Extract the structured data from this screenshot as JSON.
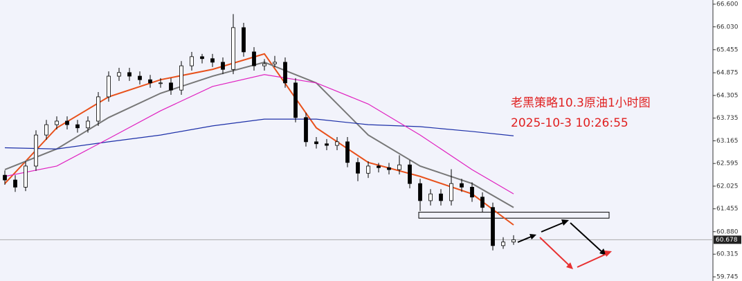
{
  "chart_data": {
    "type": "candlestick",
    "annotations": [
      "老黑策略10.3原油1小时图",
      "2025-10-3 10:26:55"
    ],
    "open": [
      62.3,
      62.18,
      62.0,
      62.53,
      63.31,
      63.57,
      63.66,
      63.57,
      63.49,
      63.66,
      64.27,
      64.79,
      64.88,
      64.79,
      64.7,
      64.62,
      64.62,
      64.44,
      65.05,
      65.28,
      65.23,
      65.14,
      64.96,
      66.01,
      65.4,
      65.05,
      65.1,
      65.14,
      64.62,
      63.75,
      63.14,
      63.09,
      63.05,
      63.14,
      62.62,
      62.35,
      62.53,
      62.49,
      62.44,
      62.56,
      62.09,
      61.66,
      61.83,
      61.66,
      62.09,
      62.0,
      61.75,
      61.49,
      60.53,
      60.62
    ],
    "high": [
      62.42,
      62.3,
      62.65,
      63.43,
      63.69,
      63.78,
      63.78,
      63.69,
      63.78,
      64.39,
      64.91,
      65.0,
      65.0,
      64.91,
      64.82,
      64.74,
      64.74,
      65.17,
      65.4,
      65.35,
      65.35,
      65.26,
      66.35,
      66.13,
      65.52,
      65.22,
      65.3,
      65.26,
      64.74,
      63.87,
      63.26,
      63.21,
      63.26,
      63.26,
      62.74,
      62.65,
      62.61,
      62.61,
      62.8,
      62.68,
      62.21,
      61.95,
      61.95,
      62.45,
      62.21,
      62.12,
      61.87,
      61.61,
      60.74,
      60.79
    ],
    "low": [
      62.06,
      61.88,
      61.9,
      62.41,
      63.19,
      63.45,
      63.45,
      63.37,
      63.37,
      63.54,
      64.15,
      64.67,
      64.67,
      64.58,
      64.5,
      64.5,
      64.32,
      64.32,
      64.93,
      65.11,
      65.02,
      64.84,
      64.84,
      65.28,
      64.93,
      64.93,
      65.02,
      64.5,
      63.63,
      63.02,
      62.97,
      62.93,
      62.93,
      62.5,
      62.15,
      62.23,
      62.37,
      62.32,
      62.32,
      61.97,
      61.4,
      61.54,
      61.54,
      61.54,
      61.88,
      61.63,
      61.37,
      60.41,
      60.45,
      60.55
    ],
    "close": [
      62.18,
      62.0,
      62.53,
      63.31,
      63.57,
      63.66,
      63.57,
      63.49,
      63.66,
      64.27,
      64.79,
      64.88,
      64.79,
      64.7,
      64.62,
      64.62,
      64.44,
      65.05,
      65.28,
      65.23,
      65.14,
      64.96,
      66.01,
      65.4,
      65.05,
      65.1,
      65.14,
      64.62,
      63.75,
      63.14,
      63.09,
      63.05,
      63.14,
      62.62,
      62.35,
      62.53,
      62.49,
      62.44,
      62.56,
      62.09,
      61.66,
      61.83,
      61.66,
      62.09,
      62.0,
      61.75,
      61.49,
      60.53,
      60.62,
      60.678
    ],
    "lines": [
      {
        "color": "#e8501a",
        "x": [
          0,
          5,
          10,
          15,
          20,
          25,
          30,
          35,
          40,
          45,
          49
        ],
        "values": [
          62.09,
          63.49,
          64.27,
          64.7,
          64.96,
          65.35,
          63.49,
          62.62,
          62.27,
          61.83,
          61.05
        ]
      },
      {
        "color": "#777777",
        "x": [
          0,
          5,
          10,
          15,
          20,
          25,
          30,
          35,
          40,
          45,
          49
        ],
        "values": [
          62.44,
          62.96,
          63.75,
          64.36,
          64.79,
          65.14,
          64.62,
          63.31,
          62.53,
          62.09,
          61.49
        ]
      },
      {
        "color": "#1c2fa8",
        "x": [
          0,
          5,
          10,
          15,
          20,
          25,
          30,
          35,
          40,
          45,
          49
        ],
        "values": [
          62.99,
          62.96,
          63.14,
          63.31,
          63.54,
          63.71,
          63.71,
          63.57,
          63.52,
          63.4,
          63.29
        ]
      },
      {
        "color": "#e020c0",
        "x": [
          0,
          5,
          10,
          15,
          20,
          25,
          30,
          35,
          40,
          45,
          49
        ],
        "values": [
          62.27,
          62.53,
          63.22,
          63.92,
          64.53,
          64.83,
          64.62,
          64.09,
          63.31,
          62.44,
          61.83
        ]
      }
    ],
    "zone": {
      "low": 61.22,
      "high": 61.37
    },
    "current_price": 60.678,
    "ylim": [
      59.745,
      66.6
    ],
    "yticks": [
      {
        "value": 66.6,
        "label": "66.600"
      },
      {
        "value": 66.03,
        "label": "66.030"
      },
      65.455,
      64.875,
      64.305,
      63.735,
      63.165,
      62.595,
      62.025,
      61.455,
      {
        "value": 60.88,
        "label": "60.880"
      },
      60.315,
      59.745
    ]
  }
}
